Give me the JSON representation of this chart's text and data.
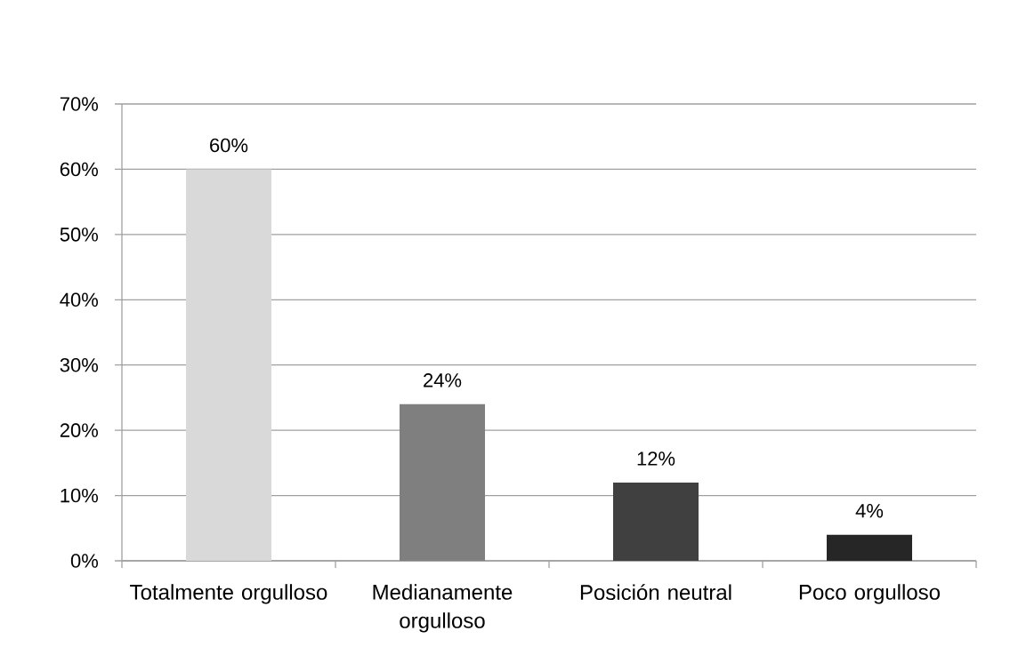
{
  "chart_data": {
    "type": "bar",
    "categories": [
      "Totalmente orgulloso",
      "Medianamente orgulloso",
      "Posición neutral",
      "Poco orgulloso"
    ],
    "values": [
      60,
      24,
      12,
      4
    ],
    "colors": [
      "#d9d9d9",
      "#7f7f7f",
      "#404040",
      "#262626"
    ],
    "value_labels": [
      "60%",
      "24%",
      "12%",
      "4%"
    ],
    "ylim": [
      0,
      70
    ],
    "yticks": [
      {
        "value": 0,
        "label": "0%"
      },
      {
        "value": 10,
        "label": "10%"
      },
      {
        "value": 20,
        "label": "20%"
      },
      {
        "value": 30,
        "label": "30%"
      },
      {
        "value": 40,
        "label": "40%"
      },
      {
        "value": 50,
        "label": "50%"
      },
      {
        "value": 60,
        "label": "60%"
      },
      {
        "value": 70,
        "label": "70%"
      }
    ],
    "grid": "y"
  }
}
